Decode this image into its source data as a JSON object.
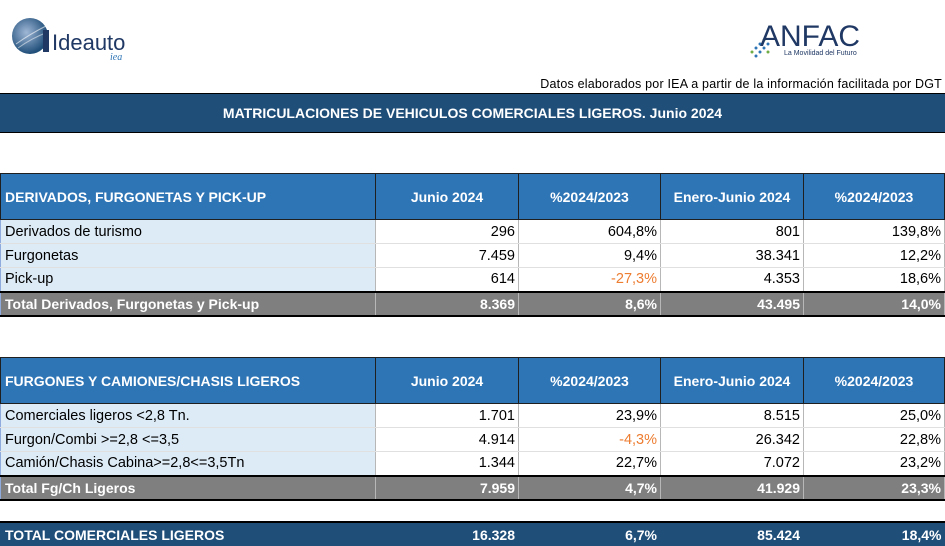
{
  "header": {
    "left_logo_text": "Ideauto",
    "left_logo_sub": "iea",
    "right_logo_text": "ANFAC",
    "right_logo_tagline": "La Movilidad del Futuro",
    "source_note": "Datos elaborados por IEA a partir de la información facilitada por DGT",
    "title": "MATRICULACIONES DE VEHICULOS COMERCIALES LIGEROS. Junio 2024"
  },
  "columns": [
    "Junio 2024",
    "%2024/2023",
    "Enero-Junio 2024",
    "%2024/2023"
  ],
  "section1": {
    "heading": "DERIVADOS, FURGONETAS Y PICK-UP",
    "rows": [
      {
        "label": "Derivados de turismo",
        "jun": "296",
        "pct1": "604,8%",
        "ytd": "801",
        "pct2": "139,8%"
      },
      {
        "label": "Furgonetas",
        "jun": "7.459",
        "pct1": "9,4%",
        "ytd": "38.341",
        "pct2": "12,2%"
      },
      {
        "label": "Pick-up",
        "jun": "614",
        "pct1": "-27,3%",
        "ytd": "4.353",
        "pct2": "18,6%"
      }
    ],
    "total": {
      "label": "Total Derivados, Furgonetas y Pick-up",
      "jun": "8.369",
      "pct1": "8,6%",
      "ytd": "43.495",
      "pct2": "14,0%"
    }
  },
  "section2": {
    "heading": "FURGONES Y CAMIONES/CHASIS LIGEROS",
    "rows": [
      {
        "label": "Comerciales ligeros <2,8 Tn.",
        "jun": "1.701",
        "pct1": "23,9%",
        "ytd": "8.515",
        "pct2": "25,0%"
      },
      {
        "label": "Furgon/Combi >=2,8 <=3,5",
        "jun": "4.914",
        "pct1": "-4,3%",
        "ytd": "26.342",
        "pct2": "22,8%"
      },
      {
        "label": "Camión/Chasis Cabina>=2,8<=3,5Tn",
        "jun": "1.344",
        "pct1": "22,7%",
        "ytd": "7.072",
        "pct2": "23,2%"
      }
    ],
    "total": {
      "label": "Total Fg/Ch Ligeros",
      "jun": "7.959",
      "pct1": "4,7%",
      "ytd": "41.929",
      "pct2": "23,3%"
    }
  },
  "grand_total": {
    "label": "TOTAL COMERCIALES LIGEROS",
    "jun": "16.328",
    "pct1": "6,7%",
    "ytd": "85.424",
    "pct2": "18,4%"
  },
  "colors": {
    "banner": "#1f4e79",
    "header_blue": "#2e75b6",
    "label_bg": "#ddebf7",
    "total_gray": "#7f7f7f",
    "negative": "#ed7d31"
  }
}
